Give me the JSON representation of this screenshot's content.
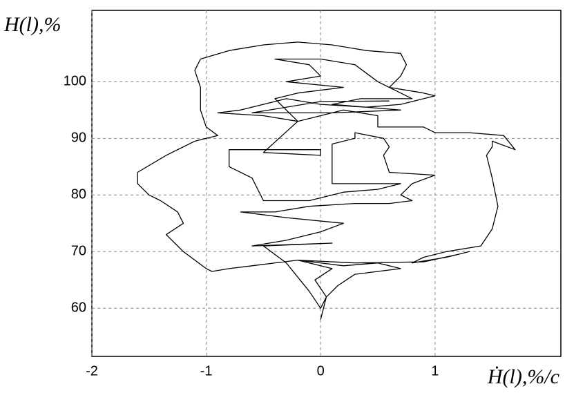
{
  "chart_data": {
    "type": "line",
    "y_label": "H(l),%",
    "x_label": "Ḣ(l),%/c",
    "color": "#000000",
    "grid": true,
    "xlim": [
      -2,
      2.1
    ],
    "ylim": [
      51.5,
      112.6
    ],
    "xticks": [
      -2,
      -1,
      0,
      1
    ],
    "yticks": [
      60,
      70,
      80,
      90,
      100
    ],
    "x": [
      0.0,
      0.05,
      -0.05,
      0.1,
      -0.2,
      -0.6,
      -0.8,
      -0.95,
      -1.0,
      -1.2,
      -1.35,
      -1.2,
      -1.25,
      -1.4,
      -1.5,
      -1.6,
      -1.6,
      -1.35,
      -1.1,
      -0.9,
      -1.0,
      -1.05,
      -1.05,
      -1.1,
      -1.05,
      -0.8,
      -0.5,
      -0.2,
      0.1,
      0.4,
      0.7,
      0.75,
      0.7,
      0.6,
      0.9,
      1.0,
      0.7,
      0.4,
      0.0,
      -0.3,
      -0.7,
      -0.9,
      -0.5,
      -0.2,
      0.2,
      0.5,
      0.5,
      0.9,
      1.0,
      1.3,
      1.6,
      1.7,
      1.5,
      1.5,
      1.45,
      1.5,
      1.55,
      1.5,
      1.4,
      1.1,
      0.9,
      0.8,
      1.1,
      1.3,
      1.2,
      0.9,
      0.3,
      -0.2,
      0.2,
      0.5,
      0.7,
      0.3,
      0.15,
      0.05,
      0.0,
      -0.1,
      -0.3,
      -0.5,
      0.1,
      -0.6,
      -0.3,
      0.0,
      0.2,
      -0.3,
      -0.7,
      -0.4,
      -0.1,
      0.3,
      0.6,
      0.8,
      0.7,
      0.8,
      1.0,
      0.6,
      0.55,
      0.6,
      0.55,
      0.3,
      0.3,
      0.1,
      0.1,
      0.1,
      0.4,
      0.7,
      0.5,
      0.2,
      -0.1,
      -0.5,
      -0.6,
      -0.8,
      -0.8,
      -0.5,
      0.0,
      0.0,
      -0.5,
      -0.2,
      -0.4,
      -0.2,
      0.2,
      -0.3,
      0.0,
      -0.1,
      -0.4,
      0.0,
      0.3,
      0.5,
      0.8,
      0.35,
      0.1,
      0.7,
      0.1,
      -0.6,
      0.0,
      0.6
    ],
    "values": [
      58,
      62,
      65,
      67,
      68.5,
      67.5,
      67,
      66.5,
      67,
      70,
      73,
      75,
      77,
      79,
      80,
      82,
      84,
      87,
      89.5,
      90.5,
      92,
      95,
      99,
      102,
      104,
      105.5,
      106.5,
      107,
      106.5,
      105.5,
      105,
      103,
      101,
      99,
      98,
      97.5,
      96,
      95.5,
      96,
      97,
      95,
      94.5,
      94,
      93,
      95,
      94,
      92,
      92,
      91,
      91,
      90.5,
      88,
      89.5,
      88.5,
      87,
      83,
      78,
      74,
      71,
      70,
      69,
      68,
      69,
      70,
      69.5,
      68.2,
      68,
      68.5,
      67.5,
      68,
      67,
      66,
      64,
      62,
      60,
      63,
      68,
      71,
      71.5,
      71,
      72,
      73.5,
      75,
      76,
      77,
      77,
      78,
      78.5,
      78.5,
      79,
      80,
      82,
      83.5,
      84,
      87,
      88.5,
      90,
      91,
      90,
      89,
      86,
      82,
      82,
      82,
      81,
      80.5,
      79,
      79,
      83,
      85,
      88,
      88,
      88,
      87,
      87.5,
      93,
      97,
      98,
      99,
      100,
      101,
      103,
      104,
      104,
      103,
      100,
      97,
      97,
      96,
      95,
      94.5,
      94.5,
      96.5,
      96.6
    ]
  }
}
